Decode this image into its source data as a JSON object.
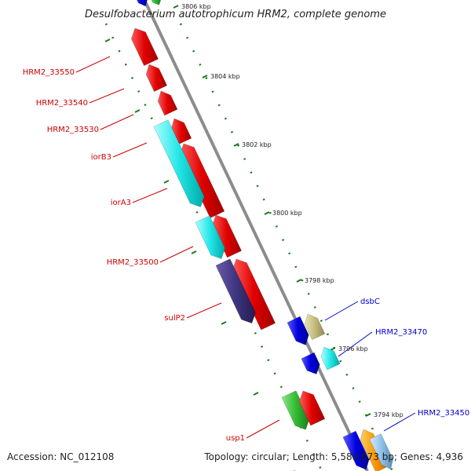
{
  "map": {
    "title": "Desulfobacterium autotrophicum HRM2, complete genome",
    "colors": {
      "backbone": "#8c8c8c",
      "tick": "#1a7a1a",
      "label_red": "#cc0000",
      "label_blue": "#0000cc"
    },
    "kbp_labels": [
      {
        "text": "3806 kbp"
      },
      {
        "text": "3804 kbp"
      },
      {
        "text": "3802 kbp"
      },
      {
        "text": "3800 kbp"
      },
      {
        "text": "3798 kbp"
      },
      {
        "text": "3796 kbp"
      },
      {
        "text": "3794 kbp"
      }
    ],
    "gene_labels": [
      {
        "text": "HRM2_33550",
        "color": "#cc0000"
      },
      {
        "text": "HRM2_33540",
        "color": "#cc0000"
      },
      {
        "text": "HRM2_33530",
        "color": "#cc0000"
      },
      {
        "text": "iorB3",
        "color": "#cc0000"
      },
      {
        "text": "iorA3",
        "color": "#cc0000"
      },
      {
        "text": "HRM2_33500",
        "color": "#cc0000"
      },
      {
        "text": "sulP2",
        "color": "#cc0000"
      },
      {
        "text": "usp1",
        "color": "#cc0000"
      },
      {
        "text": "dsbC",
        "color": "#0000cc"
      },
      {
        "text": "HRM2_33470",
        "color": "#0000cc"
      },
      {
        "text": "HRM2_33450",
        "color": "#0000cc"
      }
    ]
  },
  "footer": {
    "accession": "Accession: NC_012108",
    "summary": "Topology: circular; Length: 5,589,073 bp; Genes: 4,936"
  }
}
